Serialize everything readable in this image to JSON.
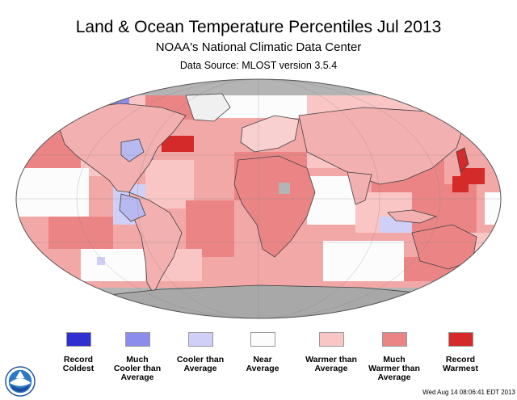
{
  "header": {
    "title": "Land & Ocean Temperature Percentiles Jul 2013",
    "subtitle": "NOAA's National Climatic Data Center",
    "source": "Data Source: MLOST version 3.5.4"
  },
  "colors": {
    "ocean_background": "#c9c9c9",
    "no_data": "#b4b4b4",
    "land_outline": "#404040"
  },
  "legend": [
    {
      "label": "Record\nColdest",
      "color": "#3030d0"
    },
    {
      "label": "Much\nCooler than\nAverage",
      "color": "#8c8cec"
    },
    {
      "label": "Cooler than\nAverage",
      "color": "#cfcff8"
    },
    {
      "label": "Near\nAverage",
      "color": "#fcfcfc"
    },
    {
      "label": "Warmer than\nAverage",
      "color": "#f9c5c5"
    },
    {
      "label": "Much\nWarmer than\nAverage",
      "color": "#eb8585"
    },
    {
      "label": "Record\nWarmest",
      "color": "#d42a2a"
    }
  ],
  "footer": {
    "timestamp": "Wed Aug 14 08:06:41 EDT 2013",
    "logo": "noaa-logo"
  }
}
